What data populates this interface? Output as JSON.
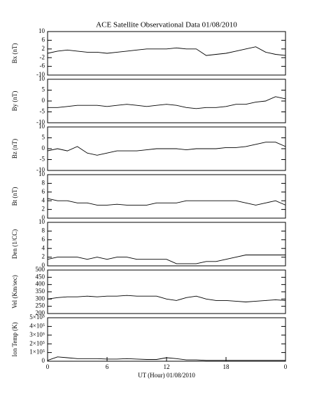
{
  "chart_data": [
    {
      "type": "line",
      "title": "ACE Satellite Observational Data   01/08/2010",
      "ylabel": "Bx (nT)",
      "x": [
        0,
        1,
        2,
        3,
        4,
        5,
        6,
        7,
        8,
        9,
        10,
        11,
        12,
        13,
        14,
        15,
        16,
        17,
        18,
        19,
        20,
        21,
        22,
        23,
        24
      ],
      "values": [
        0,
        1,
        1.5,
        1,
        0.5,
        0.5,
        0,
        0.5,
        1,
        1.5,
        2,
        2,
        2,
        2.5,
        2,
        2,
        -1,
        -0.5,
        0,
        1,
        2,
        3,
        0.5,
        -0.5,
        -1
      ],
      "color": "#000000",
      "xlim": [
        0,
        24
      ],
      "ylim": [
        -10,
        10
      ],
      "yticks": [
        -10,
        -6,
        -2,
        2,
        6,
        10
      ]
    },
    {
      "type": "line",
      "ylabel": "By (nT)",
      "x": [
        0,
        1,
        2,
        3,
        4,
        5,
        6,
        7,
        8,
        9,
        10,
        11,
        12,
        13,
        14,
        15,
        16,
        17,
        18,
        19,
        20,
        21,
        22,
        23,
        24
      ],
      "values": [
        -3,
        -3,
        -2.5,
        -2,
        -2,
        -2,
        -2.5,
        -2,
        -1.5,
        -2,
        -2.5,
        -2,
        -1.5,
        -2,
        -3,
        -3.5,
        -3,
        -3,
        -2.5,
        -1.5,
        -1.5,
        -0.5,
        0,
        2,
        1
      ],
      "color": "#000000",
      "xlim": [
        0,
        24
      ],
      "ylim": [
        -10,
        10
      ],
      "yticks": [
        -10,
        -5,
        0,
        5,
        10
      ]
    },
    {
      "type": "line",
      "ylabel": "Bz (nT)",
      "x": [
        0,
        1,
        2,
        3,
        4,
        5,
        6,
        7,
        8,
        9,
        10,
        11,
        12,
        13,
        14,
        15,
        16,
        17,
        18,
        19,
        20,
        21,
        22,
        23,
        24
      ],
      "values": [
        -1,
        0,
        -1,
        1,
        -2,
        -3,
        -2,
        -1,
        -1,
        -1,
        -0.5,
        0,
        0,
        0,
        -0.5,
        0,
        0,
        0,
        0.5,
        0.5,
        1,
        2,
        3,
        3,
        1
      ],
      "color": "#000000",
      "xlim": [
        0,
        24
      ],
      "ylim": [
        -10,
        10
      ],
      "yticks": [
        -10,
        -5,
        0,
        5,
        10
      ]
    },
    {
      "type": "line",
      "ylabel": "Bt (nT)",
      "x": [
        0,
        1,
        2,
        3,
        4,
        5,
        6,
        7,
        8,
        9,
        10,
        11,
        12,
        13,
        14,
        15,
        16,
        17,
        18,
        19,
        20,
        21,
        22,
        23,
        24
      ],
      "values": [
        4.5,
        4,
        4,
        3.5,
        3.5,
        3,
        3,
        3.2,
        3,
        3,
        3,
        3.5,
        3.5,
        3.5,
        4,
        4,
        4,
        4,
        4,
        4,
        3.5,
        3,
        3.5,
        4,
        3
      ],
      "color": "#000000",
      "xlim": [
        0,
        24
      ],
      "ylim": [
        0,
        10
      ],
      "yticks": [
        0,
        2,
        4,
        6,
        8,
        10
      ]
    },
    {
      "type": "line",
      "ylabel": "Den (1/CC)",
      "x": [
        0,
        1,
        2,
        3,
        4,
        5,
        6,
        7,
        8,
        9,
        10,
        11,
        12,
        13,
        14,
        15,
        16,
        17,
        18,
        19,
        20,
        21,
        22,
        23,
        24
      ],
      "values": [
        1.5,
        2,
        2,
        2,
        1.5,
        2,
        1.5,
        2,
        2,
        1.5,
        1.5,
        1.5,
        1.5,
        0.5,
        0.5,
        0.5,
        1,
        1,
        1.5,
        2,
        2.5,
        2.5,
        2.5,
        2.5,
        2.5
      ],
      "color": "#000000",
      "xlim": [
        0,
        24
      ],
      "ylim": [
        0,
        10
      ],
      "yticks": [
        0,
        2,
        4,
        6,
        8,
        10
      ]
    },
    {
      "type": "line",
      "ylabel": "Vel (Km/sec)",
      "x": [
        0,
        1,
        2,
        3,
        4,
        5,
        6,
        7,
        8,
        9,
        10,
        11,
        12,
        13,
        14,
        15,
        16,
        17,
        18,
        19,
        20,
        21,
        22,
        23,
        24
      ],
      "values": [
        300,
        310,
        315,
        315,
        320,
        315,
        320,
        320,
        325,
        320,
        320,
        320,
        300,
        290,
        310,
        320,
        300,
        290,
        290,
        285,
        280,
        285,
        290,
        295,
        290
      ],
      "color": "#000000",
      "xlim": [
        0,
        24
      ],
      "ylim": [
        200,
        500
      ],
      "yticks": [
        200,
        250,
        300,
        350,
        400,
        450,
        500
      ]
    },
    {
      "type": "line",
      "ylabel": "Ion Temp (K)",
      "xlabel": "UT (Hour)   01/08/2010",
      "x": [
        0,
        1,
        2,
        3,
        4,
        5,
        6,
        7,
        8,
        9,
        10,
        11,
        12,
        13,
        14,
        15,
        16,
        17,
        18,
        19,
        20,
        21,
        22,
        23,
        24
      ],
      "values": [
        10000,
        50000,
        40000,
        30000,
        30000,
        30000,
        25000,
        25000,
        30000,
        25000,
        20000,
        20000,
        40000,
        30000,
        15000,
        15000,
        10000,
        10000,
        10000,
        10000,
        10000,
        10000,
        10000,
        10000,
        10000
      ],
      "color": "#000000",
      "xlim": [
        0,
        24
      ],
      "ylim": [
        0,
        500000
      ],
      "yticks": [
        0,
        {
          "value": 100000,
          "label": "1×10⁵"
        },
        {
          "value": 200000,
          "label": "2×10⁵"
        },
        {
          "value": 300000,
          "label": "3×10⁵"
        },
        {
          "value": 400000,
          "label": "4×10⁵"
        },
        {
          "value": 500000,
          "label": "5×10⁵"
        }
      ],
      "xticks": [
        0,
        6,
        12,
        18,
        {
          "value": 24,
          "label": "0"
        }
      ]
    }
  ]
}
